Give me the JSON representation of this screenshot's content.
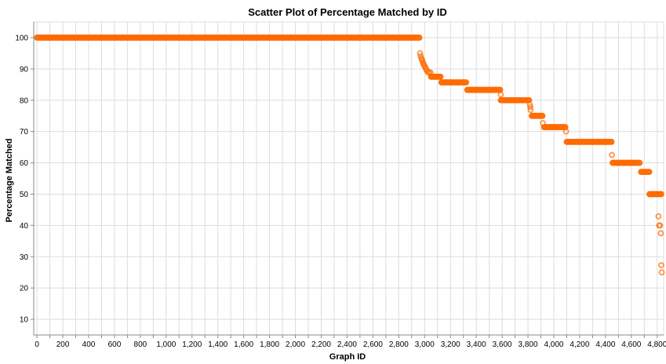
{
  "chart_data": {
    "type": "scatter",
    "title": "Scatter Plot of Percentage Matched by ID",
    "xlabel": "Graph ID",
    "ylabel": "Percentage Matched",
    "xlim": [
      -25,
      4850
    ],
    "ylim": [
      5,
      105
    ],
    "x_ticks": [
      0,
      200,
      400,
      600,
      800,
      1000,
      1200,
      1400,
      1600,
      1800,
      2000,
      2200,
      2400,
      2600,
      2800,
      3000,
      3200,
      3400,
      3600,
      3800,
      4000,
      4200,
      4400,
      4600,
      4800
    ],
    "x_tick_labels": [
      "0",
      "200",
      "400",
      "600",
      "800",
      "1,000",
      "1,200",
      "1,400",
      "1,600",
      "1,800",
      "2,000",
      "2,200",
      "2,400",
      "2,600",
      "2,800",
      "3,000",
      "3,200",
      "3,400",
      "3,600",
      "3,800",
      "4,000",
      "4,200",
      "4,400",
      "4,600",
      "4,800"
    ],
    "x_grid_step": 100,
    "y_ticks": [
      10,
      20,
      30,
      40,
      50,
      60,
      70,
      80,
      90,
      100
    ],
    "y_tick_labels": [
      "10",
      "20",
      "30",
      "40",
      "50",
      "60",
      "70",
      "80",
      "90",
      "100"
    ],
    "grid": true,
    "marker": "hollow-circle",
    "color": "#ff6a00",
    "segments": [
      {
        "x_start": 0,
        "x_end": 2965,
        "y": 100.0
      },
      {
        "x_start": 3050,
        "x_end": 3130,
        "y": 87.5
      },
      {
        "x_start": 3130,
        "x_end": 3330,
        "y": 85.7
      },
      {
        "x_start": 3330,
        "x_end": 3590,
        "y": 83.3
      },
      {
        "x_start": 3590,
        "x_end": 3810,
        "y": 80.0
      },
      {
        "x_start": 3830,
        "x_end": 3915,
        "y": 75.0
      },
      {
        "x_start": 3925,
        "x_end": 4090,
        "y": 71.4
      },
      {
        "x_start": 4100,
        "x_end": 4450,
        "y": 66.7
      },
      {
        "x_start": 4455,
        "x_end": 4665,
        "y": 60.0
      },
      {
        "x_start": 4675,
        "x_end": 4740,
        "y": 57.1
      },
      {
        "x_start": 4740,
        "x_end": 4880,
        "y": 50.0
      }
    ],
    "points": [
      {
        "x": 2965,
        "y": 95.0
      },
      {
        "x": 2970,
        "y": 94.1
      },
      {
        "x": 2975,
        "y": 93.3
      },
      {
        "x": 2980,
        "y": 92.9
      },
      {
        "x": 2985,
        "y": 92.3
      },
      {
        "x": 2990,
        "y": 91.7
      },
      {
        "x": 2995,
        "y": 91.3
      },
      {
        "x": 3000,
        "y": 90.9
      },
      {
        "x": 3005,
        "y": 90.5
      },
      {
        "x": 3010,
        "y": 90.0
      },
      {
        "x": 3018,
        "y": 89.5
      },
      {
        "x": 3025,
        "y": 88.9
      },
      {
        "x": 3035,
        "y": 88.9
      },
      {
        "x": 3045,
        "y": 88.9
      },
      {
        "x": 3590,
        "y": 81.8
      },
      {
        "x": 3815,
        "y": 78.6
      },
      {
        "x": 3818,
        "y": 77.8
      },
      {
        "x": 3820,
        "y": 76.9
      },
      {
        "x": 3915,
        "y": 72.7
      },
      {
        "x": 4095,
        "y": 70.0
      },
      {
        "x": 4450,
        "y": 62.5
      },
      {
        "x": 4810,
        "y": 42.9
      },
      {
        "x": 4815,
        "y": 40.0
      },
      {
        "x": 4822,
        "y": 40.0
      },
      {
        "x": 4828,
        "y": 37.5
      },
      {
        "x": 4832,
        "y": 27.3
      },
      {
        "x": 4835,
        "y": 25.0
      }
    ]
  }
}
